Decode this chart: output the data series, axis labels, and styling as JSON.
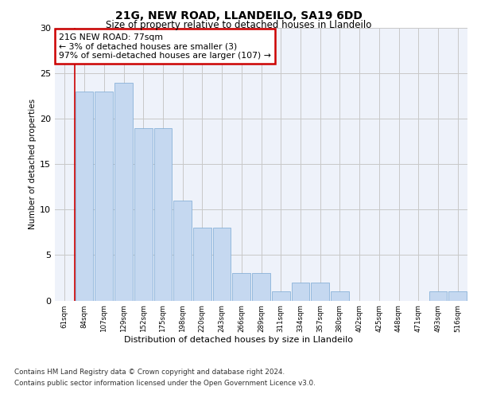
{
  "title1": "21G, NEW ROAD, LLANDEILO, SA19 6DD",
  "title2": "Size of property relative to detached houses in Llandeilo",
  "xlabel": "Distribution of detached houses by size in Llandeilo",
  "ylabel": "Number of detached properties",
  "categories": [
    "61sqm",
    "84sqm",
    "107sqm",
    "129sqm",
    "152sqm",
    "175sqm",
    "198sqm",
    "220sqm",
    "243sqm",
    "266sqm",
    "289sqm",
    "311sqm",
    "334sqm",
    "357sqm",
    "380sqm",
    "402sqm",
    "425sqm",
    "448sqm",
    "471sqm",
    "493sqm",
    "516sqm"
  ],
  "values": [
    0,
    23,
    23,
    24,
    19,
    19,
    11,
    8,
    8,
    3,
    3,
    1,
    2,
    2,
    1,
    0,
    0,
    0,
    0,
    1,
    1
  ],
  "bar_color": "#c5d8f0",
  "bar_edge_color": "#7aa8d4",
  "annotation_text": "21G NEW ROAD: 77sqm\n← 3% of detached houses are smaller (3)\n97% of semi-detached houses are larger (107) →",
  "annotation_box_color": "#ffffff",
  "annotation_box_edge_color": "#cc0000",
  "ylim": [
    0,
    30
  ],
  "yticks": [
    0,
    5,
    10,
    15,
    20,
    25,
    30
  ],
  "grid_color": "#c8c8c8",
  "background_color": "#eef2fa",
  "footer_line1": "Contains HM Land Registry data © Crown copyright and database right 2024.",
  "footer_line2": "Contains public sector information licensed under the Open Government Licence v3.0."
}
